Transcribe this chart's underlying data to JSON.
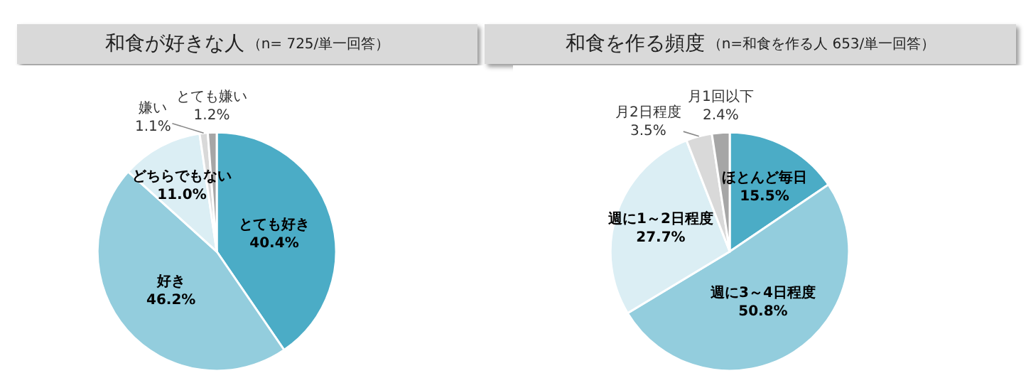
{
  "chart_data": [
    {
      "type": "pie",
      "title": "和食が好きな人",
      "subtitle": "（n= 725/単一回答）",
      "categories": [
        "とても好き",
        "好き",
        "どちらでもない",
        "嫌い",
        "とても嫌い"
      ],
      "values": [
        40.4,
        46.2,
        11.0,
        1.1,
        1.2
      ],
      "value_labels": [
        "40.4%",
        "46.2%",
        "11.0%",
        "1.1%",
        "1.2%"
      ],
      "colors": [
        "#4bacc6",
        "#93cddd",
        "#dbeef4",
        "#d9d9d9",
        "#a6a6a6"
      ],
      "legend": false
    },
    {
      "type": "pie",
      "title": "和食を作る頻度",
      "subtitle": "（n=和食を作る人 653/単一回答）",
      "categories": [
        "ほとんど毎日",
        "週に3～4日程度",
        "週に1～2日程度",
        "月2日程度",
        "月1回以下"
      ],
      "values": [
        15.5,
        50.8,
        27.7,
        3.5,
        2.4
      ],
      "value_labels": [
        "15.5%",
        "50.8%",
        "27.7%",
        "3.5%",
        "2.4%"
      ],
      "colors": [
        "#4bacc6",
        "#93cddd",
        "#dbeef4",
        "#d9d9d9",
        "#a6a6a6"
      ],
      "legend": false
    }
  ]
}
